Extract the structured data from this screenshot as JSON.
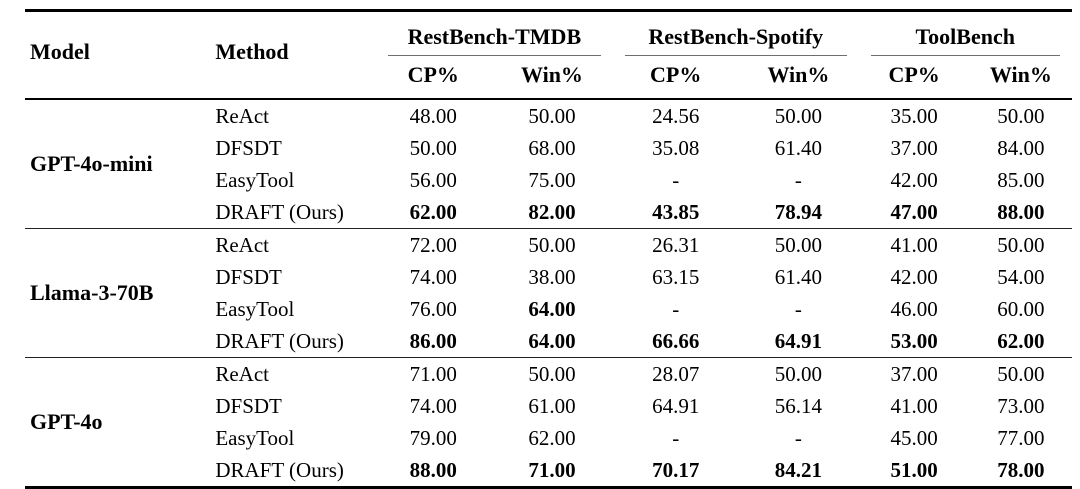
{
  "table": {
    "headers": {
      "model": "Model",
      "method": "Method",
      "groups": [
        {
          "label": "RestBench-TMDB"
        },
        {
          "label": "RestBench-Spotify"
        },
        {
          "label": "ToolBench"
        }
      ],
      "subheaders": [
        "CP%",
        "Win%",
        "CP%",
        "Win%",
        "CP%",
        "Win%"
      ]
    },
    "blocks": [
      {
        "model": "GPT-4o-mini",
        "rows": [
          {
            "method": "ReAct",
            "values": [
              "48.00",
              "50.00",
              "24.56",
              "50.00",
              "35.00",
              "50.00"
            ],
            "bold": [
              false,
              false,
              false,
              false,
              false,
              false
            ]
          },
          {
            "method": "DFSDT",
            "values": [
              "50.00",
              "68.00",
              "35.08",
              "61.40",
              "37.00",
              "84.00"
            ],
            "bold": [
              false,
              false,
              false,
              false,
              false,
              false
            ]
          },
          {
            "method": "EasyTool",
            "values": [
              "56.00",
              "75.00",
              "-",
              "-",
              "42.00",
              "85.00"
            ],
            "bold": [
              false,
              false,
              false,
              false,
              false,
              false
            ]
          },
          {
            "method": "DRAFT (Ours)",
            "values": [
              "62.00",
              "82.00",
              "43.85",
              "78.94",
              "47.00",
              "88.00"
            ],
            "bold": [
              true,
              true,
              true,
              true,
              true,
              true
            ]
          }
        ]
      },
      {
        "model": "Llama-3-70B",
        "rows": [
          {
            "method": "ReAct",
            "values": [
              "72.00",
              "50.00",
              "26.31",
              "50.00",
              "41.00",
              "50.00"
            ],
            "bold": [
              false,
              false,
              false,
              false,
              false,
              false
            ]
          },
          {
            "method": "DFSDT",
            "values": [
              "74.00",
              "38.00",
              "63.15",
              "61.40",
              "42.00",
              "54.00"
            ],
            "bold": [
              false,
              false,
              false,
              false,
              false,
              false
            ]
          },
          {
            "method": "EasyTool",
            "values": [
              "76.00",
              "64.00",
              "-",
              "-",
              "46.00",
              "60.00"
            ],
            "bold": [
              false,
              true,
              false,
              false,
              false,
              false
            ]
          },
          {
            "method": "DRAFT (Ours)",
            "values": [
              "86.00",
              "64.00",
              "66.66",
              "64.91",
              "53.00",
              "62.00"
            ],
            "bold": [
              true,
              true,
              true,
              true,
              true,
              true
            ]
          }
        ]
      },
      {
        "model": "GPT-4o",
        "rows": [
          {
            "method": "ReAct",
            "values": [
              "71.00",
              "50.00",
              "28.07",
              "50.00",
              "37.00",
              "50.00"
            ],
            "bold": [
              false,
              false,
              false,
              false,
              false,
              false
            ]
          },
          {
            "method": "DFSDT",
            "values": [
              "74.00",
              "61.00",
              "64.91",
              "56.14",
              "41.00",
              "73.00"
            ],
            "bold": [
              false,
              false,
              false,
              false,
              false,
              false
            ]
          },
          {
            "method": "EasyTool",
            "values": [
              "79.00",
              "62.00",
              "-",
              "-",
              "45.00",
              "77.00"
            ],
            "bold": [
              false,
              false,
              false,
              false,
              false,
              false
            ]
          },
          {
            "method": "DRAFT (Ours)",
            "values": [
              "88.00",
              "71.00",
              "70.17",
              "84.21",
              "51.00",
              "78.00"
            ],
            "bold": [
              true,
              true,
              true,
              true,
              true,
              true
            ]
          }
        ]
      }
    ]
  }
}
